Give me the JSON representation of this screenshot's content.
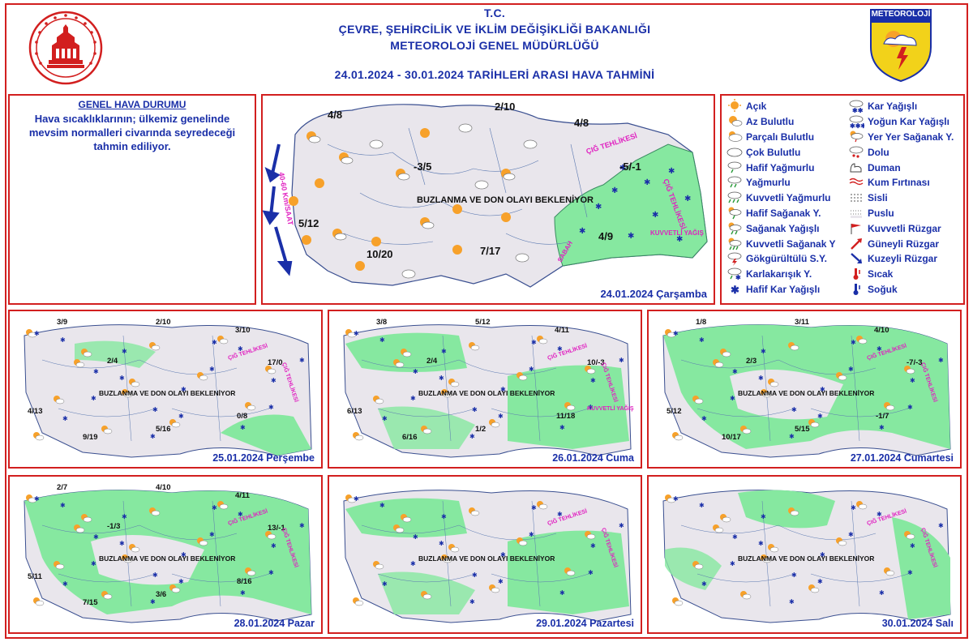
{
  "header": {
    "line1": "T.C.",
    "line2": "ÇEVRE, ŞEHİRCİLİK VE İKLİM DEĞİŞİKLİĞİ BAKANLIĞI",
    "line3": "METEOROLOJİ  GENEL  MÜDÜRLÜĞÜ",
    "line4": "24.01.2024  -  30.01.2024    TARİHLERİ  ARASI  HAVA  TAHMİNİ",
    "logo_right_text": "METEOROLOJİ"
  },
  "general": {
    "title": "GENEL HAVA DURUMU",
    "text": "Hava sıcaklıklarının; ülkemiz genelinde mevsim normalleri civarında seyredeceği tahmin ediliyor."
  },
  "legend": [
    {
      "label": "Açık",
      "icon": "sun-icon"
    },
    {
      "label": "Kar Yağışlı",
      "icon": "snow-icon"
    },
    {
      "label": "Az Bulutlu",
      "icon": "sun-small-cloud-icon"
    },
    {
      "label": "Yoğun Kar Yağışlı",
      "icon": "heavy-snow-icon"
    },
    {
      "label": "Parçalı Bulutlu",
      "icon": "partly-cloudy-icon"
    },
    {
      "label": "Yer Yer Sağanak Y.",
      "icon": "local-shower-icon"
    },
    {
      "label": "Çok Bulutlu",
      "icon": "cloudy-icon"
    },
    {
      "label": "Dolu",
      "icon": "hail-icon"
    },
    {
      "label": "Hafif Yağmurlu",
      "icon": "light-rain-icon"
    },
    {
      "label": "Duman",
      "icon": "smoke-icon"
    },
    {
      "label": "Yağmurlu",
      "icon": "rain-icon"
    },
    {
      "label": "Kum Fırtınası",
      "icon": "sandstorm-icon"
    },
    {
      "label": "Kuvvetli Yağmurlu",
      "icon": "heavy-rain-icon"
    },
    {
      "label": "Sisli",
      "icon": "fog-icon"
    },
    {
      "label": "Hafif Sağanak Y.",
      "icon": "light-shower-icon"
    },
    {
      "label": "Puslu",
      "icon": "haze-icon"
    },
    {
      "label": "Sağanak Yağışlı",
      "icon": "shower-icon"
    },
    {
      "label": "Kuvvetli Rüzgar",
      "icon": "strong-wind-icon"
    },
    {
      "label": "Kuvvetli Sağanak Y",
      "icon": "heavy-shower-icon"
    },
    {
      "label": "Güneyli Rüzgar",
      "icon": "south-wind-arrow-icon"
    },
    {
      "label": "Gökgürültülü S.Y.",
      "icon": "thunderstorm-icon"
    },
    {
      "label": "Kuzeyli Rüzgar",
      "icon": "north-wind-arrow-icon"
    },
    {
      "label": "Karlakarışık Y.",
      "icon": "sleet-icon"
    },
    {
      "label": "Sıcak",
      "icon": "hot-thermometer-icon"
    },
    {
      "label": "Hafif Kar Yağışlı",
      "icon": "light-snow-icon"
    },
    {
      "label": "Soğuk",
      "icon": "cold-thermometer-icon"
    }
  ],
  "colors": {
    "border": "#d21f1f",
    "title_blue": "#1a2fa8",
    "land": "#e9e6ec",
    "snow_zone": "#86e8a0",
    "sea": "#ffffff",
    "outside": "#f4dccd",
    "magenta": "#e020c0"
  },
  "maps": {
    "main": {
      "date": "24.01.2024 Çarşamba",
      "warning": "BUZLANMA VE DON OLAYI BEKLENİYOR",
      "temps": [
        "4/8",
        "2/10",
        "4/8",
        "-3/5",
        "-5/-1",
        "5/12",
        "4/9",
        "10/20",
        "7/17"
      ],
      "wind_label": "40-60 Km/SAAT",
      "avalanche": "ÇIĞ TEHLİKESİ",
      "heavy": "KUVVETLİ YAĞIŞ",
      "sabah": "SABAH"
    },
    "d25": {
      "date": "25.01.2024 Perşembe",
      "warning": "BUZLANMA VE DON OLAYI BEKLENİYOR",
      "temps": [
        "3/9",
        "2/10",
        "3/10",
        "2/4",
        "17/0",
        "4/13",
        "5/16",
        "0/8",
        "9/19"
      ],
      "avalanche": "ÇIĞ TEHLİKESİ"
    },
    "d26": {
      "date": "26.01.2024 Cuma",
      "warning": "BUZLANMA VE DON OLAYI BEKLENİYOR",
      "temps": [
        "3/8",
        "5/12",
        "4/11",
        "2/4",
        "10/-3",
        "6/13",
        "1/2",
        "11/18",
        "6/16"
      ],
      "avalanche": "ÇIĞ TEHLİKESİ",
      "heavy": "KUVVETLİ YAĞIŞ"
    },
    "d27": {
      "date": "27.01.2024 Cumartesi",
      "warning": "BUZLANMA VE DON OLAYI BEKLENİYOR",
      "temps": [
        "1/8",
        "3/11",
        "4/10",
        "2/3",
        "-7/-3",
        "5/12",
        "5/15",
        "-1/7",
        "10/17"
      ],
      "avalanche": "ÇIĞ TEHLİKESİ"
    },
    "d28": {
      "date": "28.01.2024 Pazar",
      "warning": "BUZLANMA VE DON OLAYI BEKLENİYOR",
      "temps": [
        "2/7",
        "4/10",
        "4/11",
        "-1/3",
        "13/-1",
        "5/11",
        "3/6",
        "8/16",
        "7/15"
      ],
      "avalanche": "ÇIĞ TEHLİKESİ"
    },
    "d29": {
      "date": "29.01.2024 Pazartesi",
      "warning": "BUZLANMA VE DON OLAYI BEKLENİYOR",
      "avalanche": "ÇIĞ TEHLİKESİ"
    },
    "d30": {
      "date": "30.01.2024 Salı",
      "warning": "BUZLANMA VE DON OLAYI BEKLENİYOR",
      "avalanche": "ÇIĞ TEHLİKESİ"
    }
  }
}
